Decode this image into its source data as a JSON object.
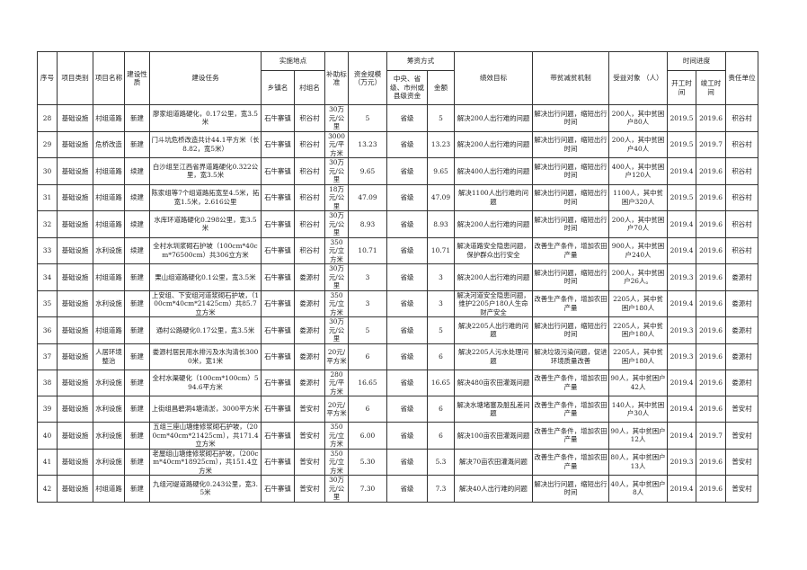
{
  "header": {
    "index": "序号",
    "category": "项目类别",
    "name": "项目名称",
    "nature": "建设性质",
    "task": "建设任务",
    "location": "实施地点",
    "town": "乡镇名",
    "village": "村组名",
    "subsidy": "补助标准",
    "scale": "资金规模（万元）",
    "funding": "筹资方式",
    "funding_source": "中央、省级、市州或县级资金",
    "amount": "金额",
    "goal": "绩效目标",
    "mechanism": "带贫减贫机制",
    "beneficiaries": "受益对象 （人）",
    "schedule": "时间进度",
    "start": "开工时间",
    "end": "竣工时间",
    "unit": "责任单位"
  },
  "rows": [
    [
      "28",
      "基础设施",
      "村组道路",
      "新建",
      "廖家组道路硬化，0.17公里，宽3.5米",
      "石牛寨镇",
      "积谷村",
      "30万元/公里",
      "5",
      "省级",
      "5",
      "解决200人出行难的问题",
      "解决出行问题，缩短出行时间",
      "200人，其中贫困户80人",
      "2019.5",
      "2019.6",
      "积谷村"
    ],
    [
      "29",
      "基础设施",
      "危桥改造",
      "新建",
      "门斗坑危桥改造共计44.1平方米（长8.82，宽5米）",
      "石牛寨镇",
      "积谷村",
      "3000元/平方米",
      "13.23",
      "省级",
      "13.23",
      "解决200人出行难的问题",
      "解决出行问题，缩短出行时间",
      "200人，其中贫困户40人",
      "2019.5",
      "2019.7",
      "积谷村"
    ],
    [
      "30",
      "基础设施",
      "村组道路",
      "续建",
      "白沙组至江西省界道路硬化0.322公里，宽3.5米",
      "石牛寨镇",
      "积谷村",
      "30万元/公里",
      "9.65",
      "省级",
      "9.65",
      "解决400人出行难的问题",
      "解决出行问题，缩短出行时间",
      "400人，其中贫困户120人",
      "2019.4",
      "2019.6",
      "积谷村"
    ],
    [
      "31",
      "基础设施",
      "村组道路",
      "续建",
      "陈家组等7个组道路拓宽至4.5米，拓宽1.5米，2.616公里",
      "石牛寨镇",
      "积谷村",
      "18万元/公里",
      "47.09",
      "省级",
      "47.09",
      "解决1100人出行难的问题",
      "解决出行问题，缩短出行时间",
      "1100人，其中贫困户320人",
      "2019.5",
      "2019.6",
      "积谷村"
    ],
    [
      "32",
      "基础设施",
      "村组道路",
      "续建",
      "水库环道路硬化0.298公里，宽3.5米",
      "石牛寨镇",
      "积谷村",
      "30万元/公里",
      "8.93",
      "省级",
      "8.93",
      "解决200人出行难的问题",
      "解决出行问题，缩短出行时间",
      "200人，其中贫困户70人",
      "2019.4",
      "2019.6",
      "积谷村"
    ],
    [
      "33",
      "基础设施",
      "水利设施",
      "续建",
      "全村水圳浆砌石护坡（100cm*40cm*76500cm）共306立方米",
      "石牛寨镇",
      "积谷村",
      "350元/立方米",
      "10.71",
      "省级",
      "10.71",
      "解决道路安全隐患问题，保护群众出行安全",
      "改善生产条件，增加农田产量",
      "900人，其中贫困户240人",
      "2019.4",
      "2019.6",
      "积谷村"
    ],
    [
      "34",
      "基础设施",
      "村组道路",
      "新建",
      "栗山组道路硬化0.1公里，宽3.5米",
      "石牛寨镇",
      "娄源村",
      "30万元/公里",
      "3",
      "省级",
      "3",
      "解决200人出行难的问题",
      "解决出行问题，缩短出行时间",
      "200人，其中贫困户26人。",
      "2019.3",
      "2019.6",
      "娄源村"
    ],
    [
      "35",
      "基础设施",
      "水利设施",
      "新建",
      "上安组、下安组河道浆砌石护坡，（100cm*40cm*21425cm）共85.7立方米",
      "石牛寨镇",
      "娄源村",
      "350元/立方米",
      "3",
      "省级",
      "3",
      "解决河道安全隐患问题，维护2205户180人生命财产安全",
      "改善生产条件，增加农田产量",
      "2205人，其中贫困户180人",
      "2019.4",
      "2019.6",
      "娄源村"
    ],
    [
      "36",
      "基础设施",
      "村组道路",
      "新建",
      "通村公路硬化0.17公里，宽3.5米",
      "石牛寨镇",
      "娄源村",
      "30万元/公里",
      "5",
      "省级",
      "5",
      "解决2205人出行难的问题",
      "解决出行问题，缩短出行时间",
      "2205人，其中贫困户180人",
      "2019.3",
      "2019.6",
      "娄源村"
    ],
    [
      "37",
      "基础设施",
      "人居环境整治",
      "新建",
      "娄源村居民用水排污及水沟清长3000米，宽1米",
      "石牛寨镇",
      "娄源村",
      "20元/平方米",
      "6",
      "省级",
      "6",
      "解决2205人污水处理问题",
      "解决垃圾污染问题，促进环境质量改善",
      "2205人，其中贫困户180人",
      "2019.3",
      "2019.6",
      "娄源村"
    ],
    [
      "38",
      "基础设施",
      "水利设施",
      "新建",
      "全村水渠硬化（100cm*100cm）594.6平方米",
      "石牛寨镇",
      "娄源村",
      "280元/平方米",
      "16.65",
      "省级",
      "16.65",
      "解决480亩农田灌溉问题",
      "改善生产条件，增加农田产量",
      "90人，其中贫困户42人",
      "2019.4",
      "2019.6",
      "娄源村"
    ],
    [
      "39",
      "基础设施",
      "水利设施",
      "新建",
      "上街组昌碧洞4塘清淤，3000平方米",
      "石牛寨镇",
      "普安村",
      "20元/平方米",
      "6",
      "省级",
      "6",
      "解决水塘堵塞及脏乱差问题",
      "改善生产条件，增加农田产量",
      "140人，其中贫困户30人",
      "2019.4",
      "2019.6",
      "普安村"
    ],
    [
      "40",
      "基础设施",
      "水利设施",
      "新建",
      "五组三座山塘维修浆砌石护坡，（200cm*40cm*21425cm），共171.4立方米",
      "石牛寨镇",
      "普安村",
      "350元/立方米",
      "6.00",
      "省级",
      "6",
      "解决100亩农田灌溉问题",
      "改善生产条件，增加农田产量",
      "90人，其中贫困户12人",
      "2019.4",
      "2019.7",
      "普安村"
    ],
    [
      "41",
      "基础设施",
      "水利设施",
      "新建",
      "老屋组山塘维修浆砌石护坡，（200cm*40cm*18925cm），共151.4立方米",
      "石牛寨镇",
      "普安村",
      "350元/立方米",
      "5.30",
      "省级",
      "5.3",
      "解决70亩农田灌溉问题",
      "改善生产条件，增加农田产量",
      "80人，其中贫困户13人",
      "2019.3",
      "2019.6",
      "普安村"
    ],
    [
      "42",
      "基础设施",
      "村组道路",
      "新建",
      "九组河堤道路硬化0.243公里，宽3.5米",
      "石牛寨镇",
      "普安村",
      "30万元/公里",
      "7.30",
      "省级",
      "7.3",
      "解决40人出行难的问题",
      "解决出行问题，缩短出行时间",
      "40人，其中贫困户8人",
      "2019.4",
      "2019.6",
      "普安村"
    ]
  ]
}
